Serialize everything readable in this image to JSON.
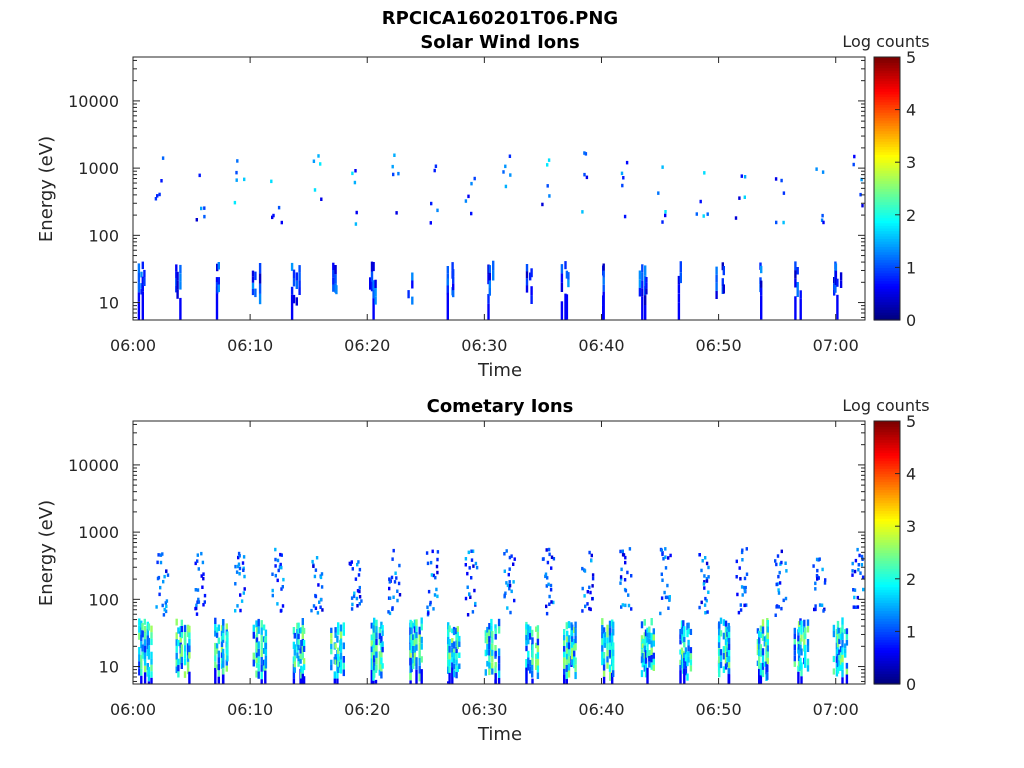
{
  "figure": {
    "title": "RPCICA160201T06.PNG"
  },
  "colormap": {
    "name": "jet",
    "stops": [
      "#00007f",
      "#0000ff",
      "#007fff",
      "#00ffff",
      "#7fff7f",
      "#ffff00",
      "#ff7f00",
      "#ff0000",
      "#7f0000"
    ]
  },
  "chart_data": [
    {
      "type": "heatmap",
      "title": "Solar Wind Ions",
      "xlabel": "Time",
      "ylabel": "Energy (eV)",
      "yscale": "log",
      "xlim_minutes": [
        0,
        62.5
      ],
      "ylim": [
        5.5,
        45000
      ],
      "x_tick_labels": [
        "06:00",
        "06:10",
        "06:20",
        "06:30",
        "06:40",
        "06:50",
        "07:00"
      ],
      "y_tick_labels": [
        "10",
        "100",
        "1000",
        "10000"
      ],
      "colorbar": {
        "label": "Log counts",
        "range": [
          0,
          5
        ],
        "tick_labels": [
          "0",
          "1",
          "2",
          "3",
          "4",
          "5"
        ]
      },
      "grid": false,
      "scans": {
        "start_minute": 0.2,
        "interval_minutes": 3.3,
        "count": 19,
        "low_band_energy_range": [
          15,
          35
        ],
        "low_band_level": [
          0.3,
          1.4
        ],
        "high_band_energy_range": [
          150,
          1800
        ],
        "high_band_level": [
          0.4,
          1.8
        ]
      }
    },
    {
      "type": "heatmap",
      "title": "Cometary Ions",
      "xlabel": "Time",
      "ylabel": "Energy (eV)",
      "yscale": "log",
      "xlim_minutes": [
        0,
        62.5
      ],
      "ylim": [
        5.5,
        45000
      ],
      "x_tick_labels": [
        "06:00",
        "06:10",
        "06:20",
        "06:30",
        "06:40",
        "06:50",
        "07:00"
      ],
      "y_tick_labels": [
        "10",
        "100",
        "1000",
        "10000"
      ],
      "colorbar": {
        "label": "Log counts",
        "range": [
          0,
          5
        ],
        "tick_labels": [
          "0",
          "1",
          "2",
          "3",
          "4",
          "5"
        ]
      },
      "grid": false,
      "scans": {
        "start_minute": 0.3,
        "interval_minutes": 3.3,
        "count": 19,
        "low_band_energy_range": [
          10,
          45
        ],
        "low_band_level": [
          0.8,
          2.7
        ],
        "high_band_energy_range": [
          60,
          600
        ],
        "high_band_level": [
          0.4,
          1.6
        ]
      }
    }
  ]
}
